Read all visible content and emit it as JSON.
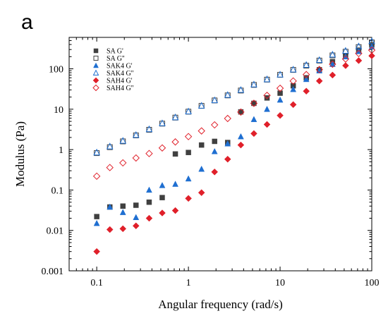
{
  "panel_label": "a",
  "chart_data": {
    "type": "scatter",
    "title": "",
    "xlabel": "Angular frequency (rad/s)",
    "ylabel": "Modulus (Pa)",
    "x_scale": "log",
    "y_scale": "log",
    "xlim": [
      0.05,
      100
    ],
    "ylim": [
      0.001,
      600
    ],
    "x_ticks": [
      {
        "value": 0.1,
        "label": "0.1"
      },
      {
        "value": 1,
        "label": "1"
      },
      {
        "value": 10,
        "label": "10"
      },
      {
        "value": 100,
        "label": "100"
      }
    ],
    "y_ticks": [
      {
        "value": 0.001,
        "label": "0.001"
      },
      {
        "value": 0.01,
        "label": "0.01"
      },
      {
        "value": 0.1,
        "label": "0.1"
      },
      {
        "value": 1,
        "label": "1"
      },
      {
        "value": 10,
        "label": "10"
      },
      {
        "value": 100,
        "label": "100"
      }
    ],
    "grid": false,
    "legend_position": "top-left",
    "x": [
      0.1,
      0.139,
      0.193,
      0.268,
      0.373,
      0.518,
      0.72,
      1.0,
      1.39,
      1.93,
      2.68,
      3.73,
      5.18,
      7.2,
      10.0,
      13.9,
      19.3,
      26.8,
      37.3,
      51.8,
      72.0,
      100.0
    ],
    "series": [
      {
        "name": "SA G'",
        "marker": "square",
        "filled": true,
        "color": "#404040",
        "values": [
          0.022,
          0.038,
          0.04,
          0.042,
          0.05,
          0.065,
          0.78,
          0.85,
          1.3,
          1.6,
          1.5,
          8.6,
          14,
          19,
          25,
          38,
          60,
          95,
          150,
          210,
          290,
          390
        ]
      },
      {
        "name": "SA G''",
        "marker": "square",
        "filled": false,
        "color": "#404040",
        "values": [
          0.82,
          1.15,
          1.6,
          2.25,
          3.1,
          4.4,
          6.2,
          8.7,
          12.1,
          16.5,
          22,
          29,
          40,
          54,
          71,
          94,
          120,
          160,
          215,
          265,
          345,
          450
        ]
      },
      {
        "name": "SAK4 G'",
        "marker": "triangle",
        "filled": true,
        "color": "#1f6fd1",
        "values": [
          0.015,
          0.038,
          0.028,
          0.021,
          0.1,
          0.13,
          0.14,
          0.19,
          0.33,
          0.9,
          1.4,
          2.1,
          5.6,
          10,
          17,
          31,
          55,
          90,
          130,
          200,
          270,
          350
        ]
      },
      {
        "name": "SAK4 G''",
        "marker": "triangle",
        "filled": false,
        "color": "#1f6fd1",
        "values": [
          0.85,
          1.2,
          1.65,
          2.3,
          3.2,
          4.5,
          6.3,
          8.8,
          12.2,
          16.7,
          22.5,
          30,
          41,
          55,
          72,
          96,
          125,
          165,
          225,
          280,
          360,
          480
        ]
      },
      {
        "name": "SAH4 G'",
        "marker": "diamond",
        "filled": true,
        "color": "#e0202a",
        "values": [
          0.003,
          0.0105,
          0.011,
          0.013,
          0.02,
          0.027,
          0.031,
          0.062,
          0.086,
          0.28,
          0.58,
          1.3,
          2.5,
          4.2,
          7,
          13,
          28,
          50,
          70,
          120,
          160,
          210
        ]
      },
      {
        "name": "SAH4 G''",
        "marker": "diamond",
        "filled": false,
        "color": "#e0202a",
        "values": [
          0.22,
          0.36,
          0.47,
          0.62,
          0.8,
          1.1,
          1.55,
          2.1,
          2.9,
          4.1,
          5.9,
          8.5,
          14,
          22,
          33,
          50,
          72,
          96,
          130,
          175,
          240,
          290
        ]
      }
    ]
  }
}
